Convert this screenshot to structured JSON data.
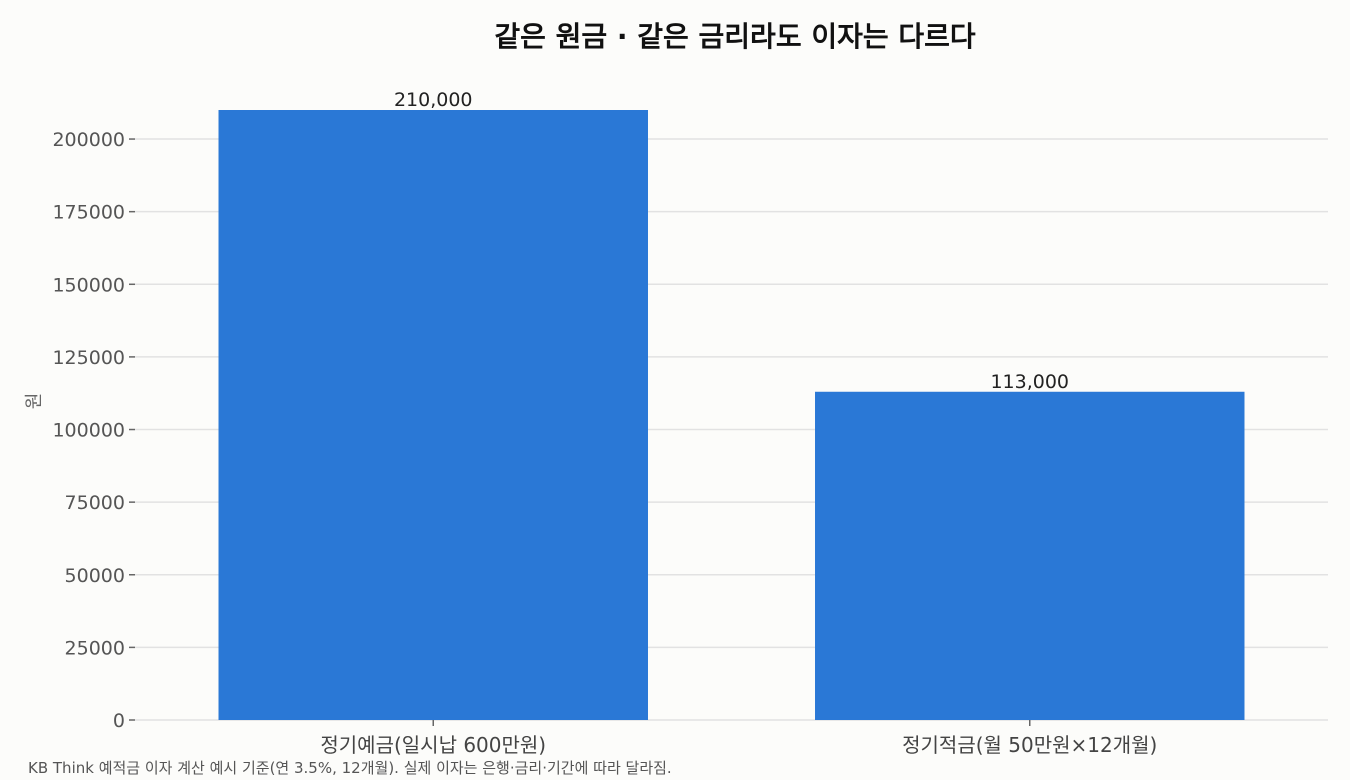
{
  "chart_data": {
    "type": "bar",
    "title": "같은 원금 · 같은 금리라도 이자는 다르다",
    "xlabel": "",
    "ylabel": "원",
    "categories": [
      "정기예금(일시납 600만원)",
      "정기적금(월 50만원×12개월)"
    ],
    "values": [
      210000,
      113000
    ],
    "value_labels": [
      "210,000",
      "113,000"
    ],
    "ylim": [
      0,
      210000
    ],
    "yticks": [
      0,
      25000,
      50000,
      75000,
      100000,
      125000,
      150000,
      175000,
      200000
    ],
    "ytick_labels": [
      "0",
      "25000",
      "50000",
      "75000",
      "100000",
      "125000",
      "150000",
      "175000",
      "200000"
    ],
    "grid": "y-major",
    "bar_color": "#2a78d6",
    "legend": "none"
  },
  "footnote": "KB Think 예적금 이자 계산 예시 기준(연 3.5%, 12개월). 실제 이자는 은행·금리·기간에 따라 달라짐."
}
